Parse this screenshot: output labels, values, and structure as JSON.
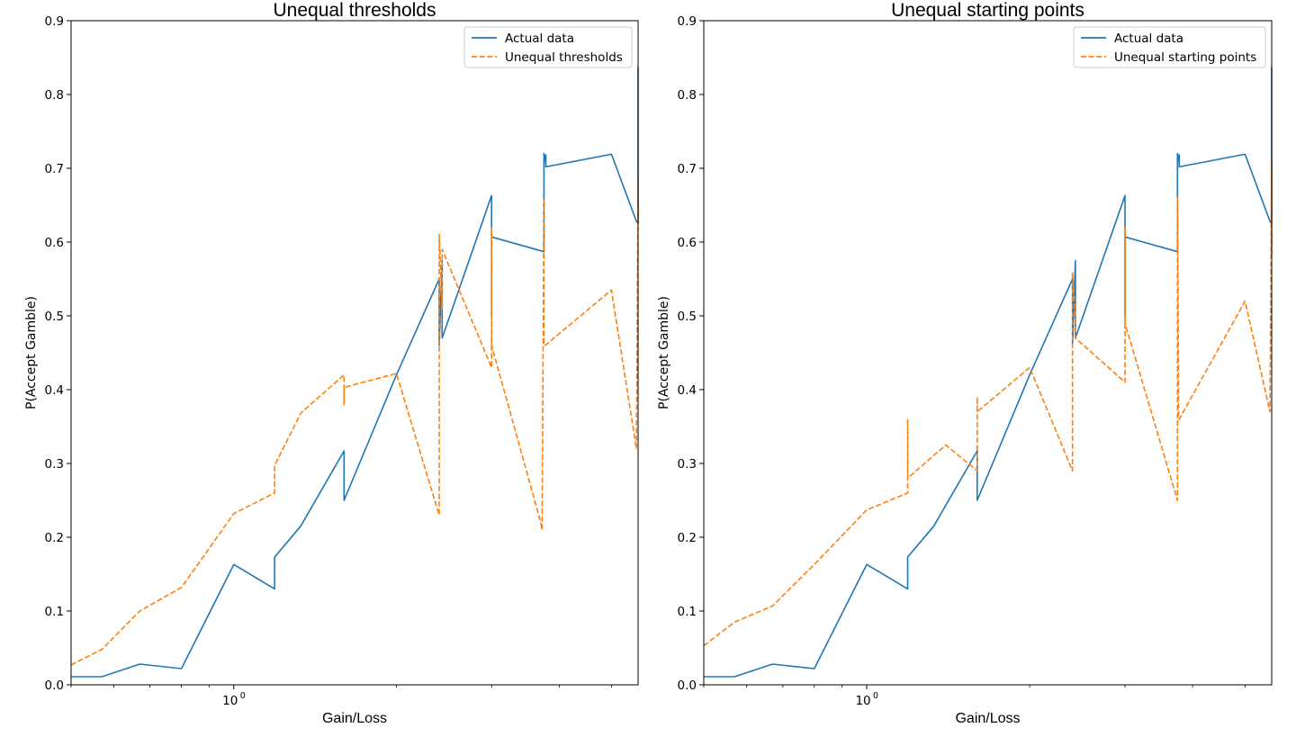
{
  "colors": {
    "actual": "#1f77b4",
    "model": "#ff7f0e",
    "axis": "#000000"
  },
  "chart_data": [
    {
      "type": "line",
      "title": "Unequal thresholds",
      "xlabel": "Gain/Loss",
      "ylabel": "P(Accept Gamble)",
      "xscale": "log",
      "xlim": [
        0.5,
        5.6
      ],
      "ylim": [
        0,
        0.9
      ],
      "yticks": [
        "0.0",
        "0.1",
        "0.2",
        "0.3",
        "0.4",
        "0.5",
        "0.6",
        "0.7",
        "0.8",
        "0.9"
      ],
      "xtick_major": [
        {
          "value": 1.0,
          "base": "10",
          "exp": "0"
        }
      ],
      "xtick_minor": [
        0.5,
        0.6,
        0.7,
        0.8,
        0.9,
        2,
        3,
        4,
        5
      ],
      "legend": "top-right",
      "grid": false,
      "series": [
        {
          "name": "Actual data",
          "style": "solid",
          "color": "#1f77b4",
          "x": [
            0.5,
            0.57,
            0.67,
            0.8,
            1.0,
            1.19,
            1.19,
            1.33,
            1.6,
            1.6,
            2.0,
            2.4,
            2.4,
            2.43,
            2.43,
            3.0,
            3.0,
            3.0,
            3.75,
            3.75,
            3.77,
            3.78,
            3.78,
            5.0,
            5.56,
            5.6,
            5.6
          ],
          "y": [
            0.011,
            0.011,
            0.028,
            0.022,
            0.163,
            0.13,
            0.173,
            0.215,
            0.317,
            0.25,
            0.42,
            0.55,
            0.46,
            0.575,
            0.47,
            0.663,
            0.5,
            0.607,
            0.587,
            0.72,
            0.71,
            0.718,
            0.702,
            0.719,
            0.628,
            0.625,
            0.837
          ]
        },
        {
          "name": "Unequal thresholds",
          "style": "dashed",
          "color": "#ff7f0e",
          "x": [
            0.5,
            0.57,
            0.67,
            0.8,
            1.0,
            1.19,
            1.19,
            1.33,
            1.6,
            1.6,
            1.6,
            2.0,
            2.4,
            2.4,
            2.43,
            2.43,
            3.0,
            3.0,
            3.0,
            3.7,
            3.72,
            3.75,
            3.75,
            3.77,
            5.0,
            5.56,
            5.6,
            5.6
          ],
          "y": [
            0.027,
            0.048,
            0.1,
            0.132,
            0.232,
            0.26,
            0.297,
            0.368,
            0.42,
            0.38,
            0.403,
            0.422,
            0.23,
            0.61,
            0.51,
            0.59,
            0.43,
            0.62,
            0.46,
            0.22,
            0.21,
            0.66,
            0.46,
            0.46,
            0.535,
            0.32,
            0.68,
            0.62
          ]
        }
      ]
    },
    {
      "type": "line",
      "title": "Unequal starting points",
      "xlabel": "Gain/Loss",
      "ylabel": "P(Accept Gamble)",
      "xscale": "log",
      "xlim": [
        0.5,
        5.6
      ],
      "ylim": [
        0,
        0.9
      ],
      "yticks": [
        "0.0",
        "0.1",
        "0.2",
        "0.3",
        "0.4",
        "0.5",
        "0.6",
        "0.7",
        "0.8",
        "0.9"
      ],
      "xtick_major": [
        {
          "value": 1.0,
          "base": "10",
          "exp": "0"
        }
      ],
      "xtick_minor": [
        0.5,
        0.6,
        0.7,
        0.8,
        0.9,
        2,
        3,
        4,
        5
      ],
      "legend": "top-right",
      "grid": false,
      "series": [
        {
          "name": "Actual data",
          "style": "solid",
          "color": "#1f77b4",
          "x": [
            0.5,
            0.57,
            0.67,
            0.8,
            1.0,
            1.19,
            1.19,
            1.33,
            1.6,
            1.6,
            2.0,
            2.4,
            2.4,
            2.43,
            2.43,
            3.0,
            3.0,
            3.0,
            3.75,
            3.75,
            3.77,
            3.78,
            3.78,
            5.0,
            5.56,
            5.6,
            5.6
          ],
          "y": [
            0.011,
            0.011,
            0.028,
            0.022,
            0.163,
            0.13,
            0.173,
            0.215,
            0.317,
            0.25,
            0.42,
            0.55,
            0.46,
            0.575,
            0.47,
            0.663,
            0.5,
            0.607,
            0.587,
            0.72,
            0.71,
            0.718,
            0.702,
            0.719,
            0.628,
            0.625,
            0.837
          ]
        },
        {
          "name": "Unequal starting points",
          "style": "dashed",
          "color": "#ff7f0e",
          "x": [
            0.5,
            0.57,
            0.67,
            0.8,
            1.0,
            1.19,
            1.19,
            1.19,
            1.19,
            1.4,
            1.6,
            1.6,
            1.6,
            2.0,
            2.4,
            2.4,
            2.43,
            2.43,
            3.0,
            3.0,
            3.0,
            3.75,
            3.75,
            3.77,
            3.78,
            5.0,
            5.56,
            5.6,
            5.6
          ],
          "y": [
            0.053,
            0.085,
            0.107,
            0.163,
            0.237,
            0.26,
            0.36,
            0.32,
            0.28,
            0.325,
            0.29,
            0.39,
            0.37,
            0.43,
            0.29,
            0.56,
            0.5,
            0.47,
            0.41,
            0.62,
            0.49,
            0.25,
            0.66,
            0.36,
            0.36,
            0.52,
            0.37,
            0.71,
            0.58
          ]
        }
      ]
    }
  ]
}
